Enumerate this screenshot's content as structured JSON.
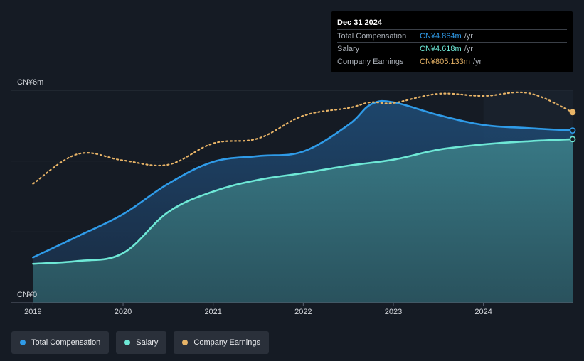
{
  "tooltip": {
    "date": "Dec 31 2024",
    "rows": [
      {
        "label": "Total Compensation",
        "value": "CN¥4.864m",
        "unit": "/yr",
        "color": "#2f9be8"
      },
      {
        "label": "Salary",
        "value": "CN¥4.618m",
        "unit": "/yr",
        "color": "#6ee8d6"
      },
      {
        "label": "Company Earnings",
        "value": "CN¥805.133m",
        "unit": "/yr",
        "color": "#e8b467"
      }
    ]
  },
  "legend": [
    {
      "label": "Total Compensation",
      "color": "#2f9be8"
    },
    {
      "label": "Salary",
      "color": "#6ee8d6"
    },
    {
      "label": "Company Earnings",
      "color": "#e8b467"
    }
  ],
  "chart_data": {
    "type": "area",
    "y_unit": "CN¥ millions",
    "ylim": [
      0,
      6
    ],
    "y_tick_labels": [
      {
        "value": 6,
        "label": "CN¥6m"
      },
      {
        "value": 0,
        "label": "CN¥0"
      }
    ],
    "x_tick_labels": [
      "2019",
      "2020",
      "2021",
      "2022",
      "2023",
      "2024"
    ],
    "xlim": [
      2018.76,
      2024.99
    ],
    "forecast_shade_from": 2024.0,
    "series": [
      {
        "name": "Total Compensation",
        "color": "#2f9be8",
        "style": "area",
        "points": [
          [
            2019.0,
            1.28
          ],
          [
            2019.5,
            1.88
          ],
          [
            2020.0,
            2.5
          ],
          [
            2020.5,
            3.36
          ],
          [
            2021.0,
            3.98
          ],
          [
            2021.5,
            4.14
          ],
          [
            2022.0,
            4.27
          ],
          [
            2022.5,
            5.02
          ],
          [
            2022.75,
            5.6
          ],
          [
            2023.0,
            5.66
          ],
          [
            2023.5,
            5.3
          ],
          [
            2024.0,
            5.02
          ],
          [
            2024.5,
            4.93
          ],
          [
            2024.99,
            4.864
          ]
        ]
      },
      {
        "name": "Salary",
        "color": "#6ee8d6",
        "style": "area",
        "points": [
          [
            2019.0,
            1.1
          ],
          [
            2019.5,
            1.18
          ],
          [
            2020.0,
            1.4
          ],
          [
            2020.5,
            2.56
          ],
          [
            2021.0,
            3.14
          ],
          [
            2021.5,
            3.47
          ],
          [
            2022.0,
            3.66
          ],
          [
            2022.5,
            3.87
          ],
          [
            2023.0,
            4.04
          ],
          [
            2023.5,
            4.32
          ],
          [
            2024.0,
            4.47
          ],
          [
            2024.5,
            4.56
          ],
          [
            2024.99,
            4.618
          ]
        ]
      },
      {
        "name": "Company Earnings",
        "color": "#e8b467",
        "style": "dotted",
        "points": [
          [
            2019.0,
            3.36
          ],
          [
            2019.5,
            4.2
          ],
          [
            2020.0,
            4.02
          ],
          [
            2020.5,
            3.9
          ],
          [
            2021.0,
            4.5
          ],
          [
            2021.5,
            4.64
          ],
          [
            2022.0,
            5.28
          ],
          [
            2022.5,
            5.5
          ],
          [
            2022.75,
            5.66
          ],
          [
            2023.0,
            5.64
          ],
          [
            2023.5,
            5.9
          ],
          [
            2024.0,
            5.84
          ],
          [
            2024.5,
            5.92
          ],
          [
            2024.99,
            5.38
          ]
        ]
      }
    ]
  }
}
